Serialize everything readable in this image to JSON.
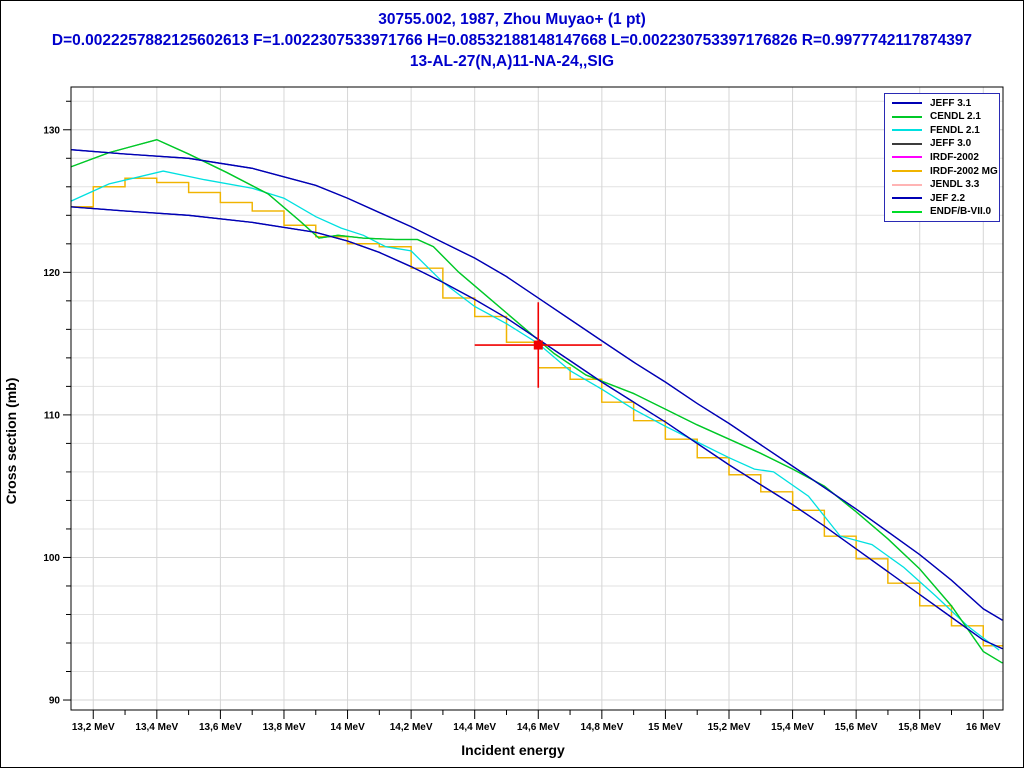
{
  "title": {
    "line1": "30755.002, 1987, Zhou Muyao+ (1 pt)",
    "line2": "D=0.0022257882125602613 F=1.0022307533971766 H=0.08532188148147668 L=0.002230753397176826 R=0.9977742117874397",
    "line3": "13-AL-27(N,A)11-NA-24,,SIG",
    "color": "#0000cc"
  },
  "chart_data": {
    "type": "line",
    "xlabel": "Incident energy",
    "ylabel": "Cross section (mb)",
    "x_unit": "MeV",
    "y_unit": "mb",
    "xlim": [
      13.13,
      16.062
    ],
    "ylim": [
      89.3,
      133.0
    ],
    "grid": {
      "vertical_every": 0.2,
      "horizontal_every": 2,
      "v_color": "#d6d6d6",
      "h_color": "#e2e2e2"
    },
    "axis_color": "#000000",
    "x_ticks": {
      "major": [
        {
          "value": 13.2,
          "label": "13,2 MeV"
        },
        {
          "value": 13.4,
          "label": "13,4 MeV"
        },
        {
          "value": 13.6,
          "label": "13,6 MeV"
        },
        {
          "value": 13.8,
          "label": "13,8 MeV"
        },
        {
          "value": 14.0,
          "label": "14 MeV"
        },
        {
          "value": 14.2,
          "label": "14,2 MeV"
        },
        {
          "value": 14.4,
          "label": "14,4 MeV"
        },
        {
          "value": 14.6,
          "label": "14,6 MeV"
        },
        {
          "value": 14.8,
          "label": "14,8 MeV"
        },
        {
          "value": 15.0,
          "label": "15 MeV"
        },
        {
          "value": 15.2,
          "label": "15,2 MeV"
        },
        {
          "value": 15.4,
          "label": "15,4 MeV"
        },
        {
          "value": 15.6,
          "label": "15,6 MeV"
        },
        {
          "value": 15.8,
          "label": "15,8 MeV"
        },
        {
          "value": 16.0,
          "label": "16 MeV"
        }
      ],
      "minor_values": [
        13.3,
        13.5,
        13.7,
        13.9,
        14.1,
        14.3,
        14.5,
        14.7,
        14.9,
        15.1,
        15.3,
        15.5,
        15.7,
        15.9
      ]
    },
    "y_ticks": {
      "major": [
        {
          "value": 90,
          "label": "90"
        },
        {
          "value": 100,
          "label": "100"
        },
        {
          "value": 110,
          "label": "110"
        },
        {
          "value": 120,
          "label": "120"
        },
        {
          "value": 130,
          "label": "130"
        }
      ],
      "minor_step": 2
    },
    "series": [
      {
        "name": "JEFF 3.1",
        "color": "#0000b4",
        "style": "line",
        "x": [
          13.13,
          13.3,
          13.5,
          13.7,
          13.9,
          14.0,
          14.1,
          14.2,
          14.3,
          14.4,
          14.5,
          14.6,
          14.7,
          14.8,
          14.9,
          15.0,
          15.1,
          15.2,
          15.3,
          15.4,
          15.5,
          15.6,
          15.7,
          15.8,
          15.9,
          16.0,
          16.06
        ],
        "y": [
          128.6,
          128.3,
          128.0,
          127.3,
          126.1,
          125.2,
          124.2,
          123.2,
          122.1,
          121.0,
          119.7,
          118.2,
          116.7,
          115.2,
          113.7,
          112.3,
          110.8,
          109.4,
          107.9,
          106.4,
          104.9,
          103.4,
          101.8,
          100.2,
          98.4,
          96.4,
          95.6
        ]
      },
      {
        "name": "CENDL 2.1",
        "color": "#00c828",
        "style": "line",
        "x": [
          13.13,
          13.25,
          13.4,
          13.5,
          13.62,
          13.75,
          13.85,
          13.91,
          13.97,
          14.05,
          14.15,
          14.22,
          14.27,
          14.35,
          14.45,
          14.55,
          14.65,
          14.75,
          14.9,
          15.0,
          15.1,
          15.2,
          15.3,
          15.4,
          15.5,
          15.6,
          15.7,
          15.8,
          15.9,
          16.0,
          16.06
        ],
        "y": [
          127.4,
          128.4,
          129.3,
          128.3,
          127.0,
          125.5,
          123.6,
          122.4,
          122.6,
          122.4,
          122.3,
          122.3,
          121.8,
          120.0,
          118.1,
          116.2,
          114.3,
          112.8,
          111.5,
          110.4,
          109.3,
          108.3,
          107.3,
          106.2,
          105.0,
          103.2,
          101.3,
          99.2,
          96.6,
          93.4,
          92.6
        ]
      },
      {
        "name": "FENDL 2.1",
        "color": "#00e0e0",
        "style": "line",
        "x": [
          13.13,
          13.25,
          13.42,
          13.55,
          13.7,
          13.8,
          13.9,
          13.98,
          14.05,
          14.12,
          14.2,
          14.3,
          14.4,
          14.5,
          14.6,
          14.7,
          14.8,
          14.9,
          15.0,
          15.1,
          15.2,
          15.28,
          15.34,
          15.45,
          15.55,
          15.65,
          15.75,
          15.85,
          15.95,
          16.05
        ],
        "y": [
          125.0,
          126.2,
          127.1,
          126.5,
          125.9,
          125.2,
          123.9,
          123.1,
          122.6,
          121.8,
          121.5,
          119.3,
          117.6,
          116.4,
          115.0,
          113.1,
          111.8,
          110.4,
          109.2,
          108.1,
          107.0,
          106.2,
          106.0,
          104.3,
          101.5,
          100.9,
          99.3,
          97.3,
          95.2,
          93.5
        ]
      },
      {
        "name": "JEFF 3.0",
        "color": "#3c3c3c",
        "style": "line",
        "same_as": "JEFF 3.1"
      },
      {
        "name": "IRDF-2002",
        "color": "#ff00ff",
        "style": "step",
        "same_as": "IRDF-2002 MG"
      },
      {
        "name": "IRDF-2002 MG",
        "color": "#f0b400",
        "style": "step",
        "edges": [
          13.13,
          13.2,
          13.3,
          13.4,
          13.5,
          13.6,
          13.7,
          13.8,
          13.9,
          14.0,
          14.1,
          14.2,
          14.3,
          14.4,
          14.5,
          14.6,
          14.7,
          14.8,
          14.9,
          15.0,
          15.1,
          15.2,
          15.3,
          15.4,
          15.5,
          15.6,
          15.7,
          15.8,
          15.9,
          16.0,
          16.06
        ],
        "values": [
          124.6,
          126.0,
          126.6,
          126.3,
          125.6,
          124.9,
          124.3,
          123.3,
          122.5,
          122.0,
          121.8,
          120.3,
          118.2,
          116.9,
          115.1,
          113.3,
          112.5,
          110.9,
          109.6,
          108.3,
          107.0,
          105.8,
          104.6,
          103.3,
          101.5,
          99.9,
          98.2,
          96.6,
          95.2,
          93.8
        ]
      },
      {
        "name": "JENDL 3.3",
        "color": "#ffb4b4",
        "style": "line",
        "same_as": "JEF 2.2"
      },
      {
        "name": "JEF 2.2",
        "color": "#0000b4",
        "style": "line",
        "x": [
          13.13,
          13.3,
          13.5,
          13.7,
          13.9,
          14.0,
          14.1,
          14.2,
          14.3,
          14.4,
          14.5,
          14.6,
          14.7,
          14.8,
          14.9,
          15.0,
          15.1,
          15.2,
          15.3,
          15.4,
          15.5,
          15.6,
          15.7,
          15.8,
          15.9,
          16.0,
          16.06
        ],
        "y": [
          124.6,
          124.3,
          124.0,
          123.5,
          122.8,
          122.2,
          121.4,
          120.4,
          119.3,
          118.1,
          116.8,
          115.3,
          113.8,
          112.3,
          110.9,
          109.5,
          108.0,
          106.5,
          105.1,
          103.7,
          102.2,
          100.6,
          99.0,
          97.4,
          95.8,
          94.2,
          93.6
        ]
      },
      {
        "name": "ENDF/B-VII.0",
        "color": "#00dc28",
        "style": "line",
        "same_as": "CENDL 2.1"
      }
    ],
    "data_point": {
      "label": "30755.002 Zhou Muyao+",
      "x": 14.6,
      "y": 114.9,
      "x_err": 0.2,
      "y_err": 3.0,
      "color": "#f00000"
    },
    "legend_position": "top-right"
  }
}
